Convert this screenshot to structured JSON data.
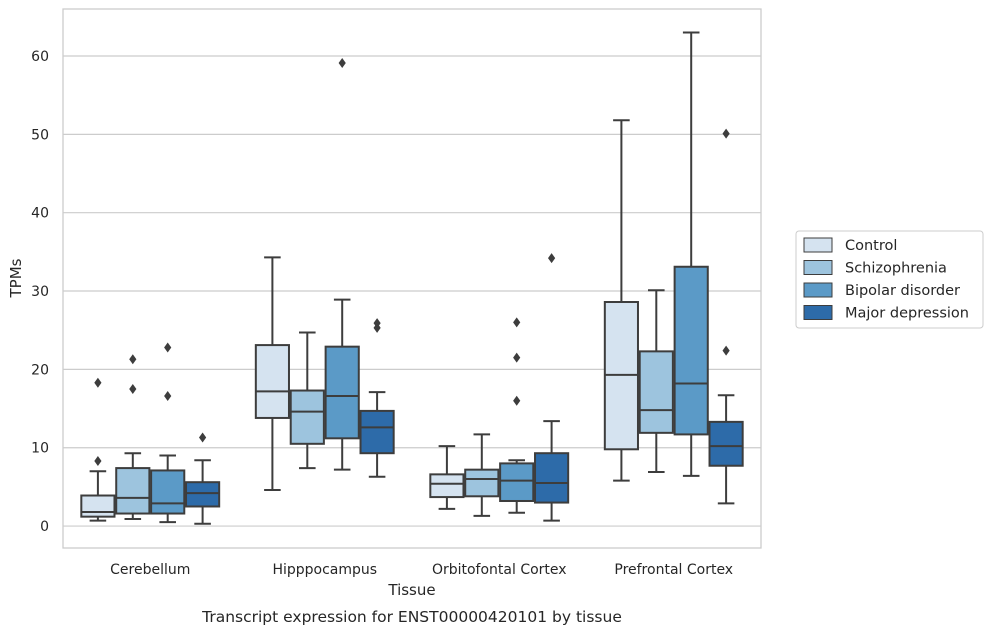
{
  "caption": "Transcript expression for ENST00000420101 by tissue",
  "chart_data": {
    "type": "box",
    "xlabel": "Tissue",
    "ylabel": "TPMs",
    "ylim": [
      -2.8,
      66
    ],
    "yticks": [
      0,
      10,
      20,
      30,
      40,
      50,
      60
    ],
    "grid": true,
    "legend_position": "right, outside plot",
    "categories": [
      "Cerebellum",
      "Hipppocampus",
      "Orbitofontal Cortex",
      "Prefrontal Cortex"
    ],
    "series": [
      {
        "name": "Control",
        "color": "#d5e3f0",
        "boxes": [
          {
            "whisker_low": 0.7,
            "q1": 1.2,
            "median": 1.8,
            "q3": 3.9,
            "whisker_high": 7.0,
            "outliers": [
              8.3,
              18.3
            ]
          },
          {
            "whisker_low": 4.6,
            "q1": 13.8,
            "median": 17.2,
            "q3": 23.1,
            "whisker_high": 34.3,
            "outliers": []
          },
          {
            "whisker_low": 2.2,
            "q1": 3.7,
            "median": 5.4,
            "q3": 6.6,
            "whisker_high": 10.2,
            "outliers": []
          },
          {
            "whisker_low": 5.8,
            "q1": 9.8,
            "median": 19.3,
            "q3": 28.6,
            "whisker_high": 51.8,
            "outliers": []
          }
        ]
      },
      {
        "name": "Schizophrenia",
        "color": "#9dc4de",
        "boxes": [
          {
            "whisker_low": 0.9,
            "q1": 1.6,
            "median": 3.6,
            "q3": 7.4,
            "whisker_high": 9.3,
            "outliers": [
              17.5,
              21.3
            ]
          },
          {
            "whisker_low": 7.4,
            "q1": 10.5,
            "median": 14.6,
            "q3": 17.3,
            "whisker_high": 24.7,
            "outliers": []
          },
          {
            "whisker_low": 1.3,
            "q1": 3.8,
            "median": 6.0,
            "q3": 7.2,
            "whisker_high": 11.7,
            "outliers": []
          },
          {
            "whisker_low": 6.9,
            "q1": 11.9,
            "median": 14.8,
            "q3": 22.3,
            "whisker_high": 30.1,
            "outliers": []
          }
        ]
      },
      {
        "name": "Bipolar disorder",
        "color": "#5b9ac7",
        "boxes": [
          {
            "whisker_low": 0.5,
            "q1": 1.6,
            "median": 2.9,
            "q3": 7.1,
            "whisker_high": 9.0,
            "outliers": [
              16.6,
              22.8
            ]
          },
          {
            "whisker_low": 7.2,
            "q1": 11.2,
            "median": 16.6,
            "q3": 22.9,
            "whisker_high": 28.9,
            "outliers": [
              59.1
            ]
          },
          {
            "whisker_low": 1.7,
            "q1": 3.2,
            "median": 5.8,
            "q3": 8.0,
            "whisker_high": 8.4,
            "outliers": [
              16.0,
              21.5,
              26.0
            ]
          },
          {
            "whisker_low": 6.4,
            "q1": 11.7,
            "median": 18.2,
            "q3": 33.1,
            "whisker_high": 63.0,
            "outliers": []
          }
        ]
      },
      {
        "name": "Major depression",
        "color": "#2d6ba9",
        "boxes": [
          {
            "whisker_low": 0.3,
            "q1": 2.5,
            "median": 4.2,
            "q3": 5.6,
            "whisker_high": 8.4,
            "outliers": [
              11.3
            ]
          },
          {
            "whisker_low": 6.3,
            "q1": 9.3,
            "median": 12.6,
            "q3": 14.7,
            "whisker_high": 17.1,
            "outliers": [
              25.3,
              25.9
            ]
          },
          {
            "whisker_low": 0.7,
            "q1": 3.0,
            "median": 5.5,
            "q3": 9.3,
            "whisker_high": 13.4,
            "outliers": [
              34.2
            ]
          },
          {
            "whisker_low": 2.9,
            "q1": 7.7,
            "median": 10.2,
            "q3": 13.3,
            "whisker_high": 16.7,
            "outliers": [
              22.4,
              50.1
            ]
          }
        ]
      }
    ]
  }
}
